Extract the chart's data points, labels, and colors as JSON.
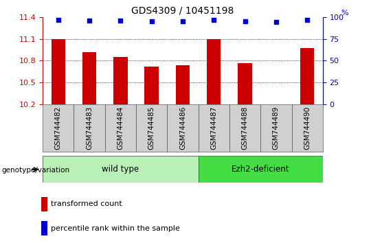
{
  "title": "GDS4309 / 10451198",
  "samples": [
    "GSM744482",
    "GSM744483",
    "GSM744484",
    "GSM744485",
    "GSM744486",
    "GSM744487",
    "GSM744488",
    "GSM744489",
    "GSM744490"
  ],
  "transformed_counts": [
    11.1,
    10.92,
    10.85,
    10.72,
    10.74,
    11.1,
    10.77,
    10.2,
    10.97
  ],
  "percentile_ranks": [
    97,
    96,
    96,
    95,
    95,
    97,
    95,
    94,
    97
  ],
  "ylim_left": [
    10.2,
    11.4
  ],
  "ylim_right": [
    0,
    100
  ],
  "yticks_left": [
    10.2,
    10.5,
    10.8,
    11.1,
    11.4
  ],
  "yticks_right": [
    0,
    25,
    50,
    75,
    100
  ],
  "bar_color": "#cc0000",
  "dot_color": "#0000cc",
  "bar_bottom": 10.2,
  "groups": [
    {
      "label": "wild type",
      "samples_count": 5,
      "color": "#b8f0b8"
    },
    {
      "label": "Ezh2-deficient",
      "samples_count": 4,
      "color": "#44dd44"
    }
  ],
  "group_label": "genotype/variation",
  "legend_bar_label": "transformed count",
  "legend_dot_label": "percentile rank within the sample",
  "title_fontsize": 10,
  "axis_label_color_left": "#cc0000",
  "axis_label_color_right": "#0000cc",
  "tick_label_fontsize": 7.5,
  "bar_width": 0.45,
  "sample_box_color": "#d0d0d0",
  "spine_color": "#888888"
}
